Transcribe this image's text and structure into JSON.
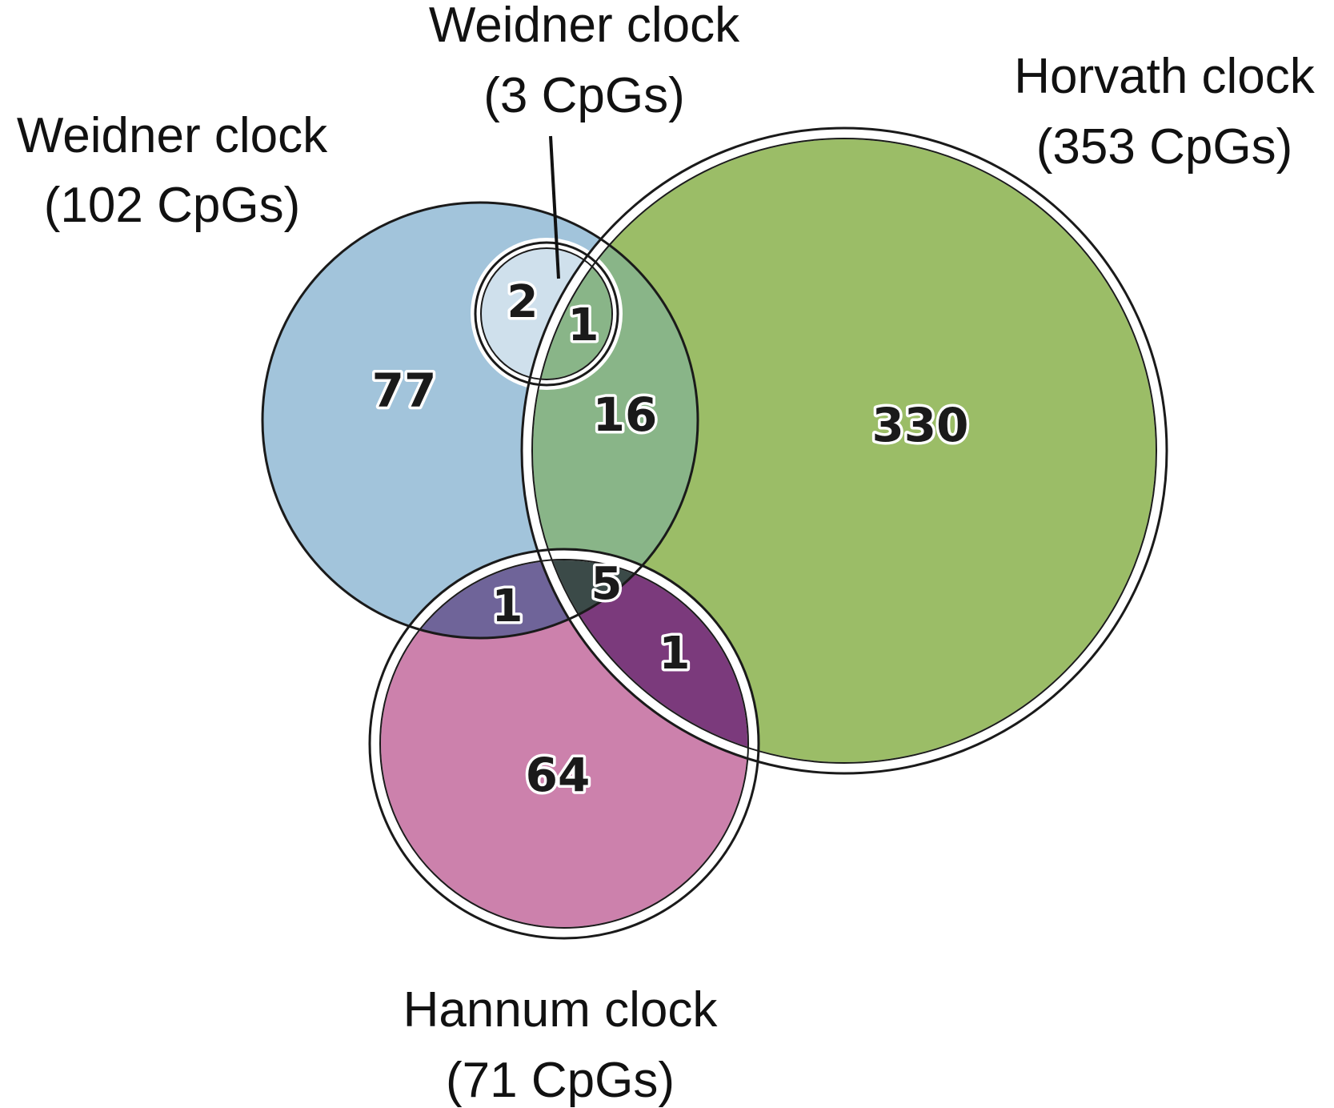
{
  "sets": {
    "weidner102": {
      "title": "Weidner clock",
      "subtitle": "(102 CpGs)",
      "color": "#a2c4db"
    },
    "weidner3": {
      "title": "Weidner clock",
      "subtitle": "(3 CpGs)",
      "color": "#cfe0ec"
    },
    "horvath": {
      "title": "Horvath clock",
      "subtitle": "(353 CpGs)",
      "color": "#9bbd67"
    },
    "hannum": {
      "title": "Hannum clock",
      "subtitle": "(71 CpGs)",
      "color": "#cc81ac"
    }
  },
  "regions": {
    "weidner102_only": "77",
    "weidner3_only": "2",
    "weidner3_horvath_weidner102": "1",
    "weidner102_horvath": "16",
    "horvath_only": "330",
    "weidner102_hannum": "1",
    "weidner102_horvath_hannum": "5",
    "horvath_hannum": "1",
    "hannum_only": "64"
  },
  "region_colors": {
    "weidner102_horvath": "#89b588",
    "weidner102_hannum": "#6f6499",
    "weidner102_horvath_hannum": "#3b4a48",
    "horvath_hannum": "#7b3a7c"
  }
}
